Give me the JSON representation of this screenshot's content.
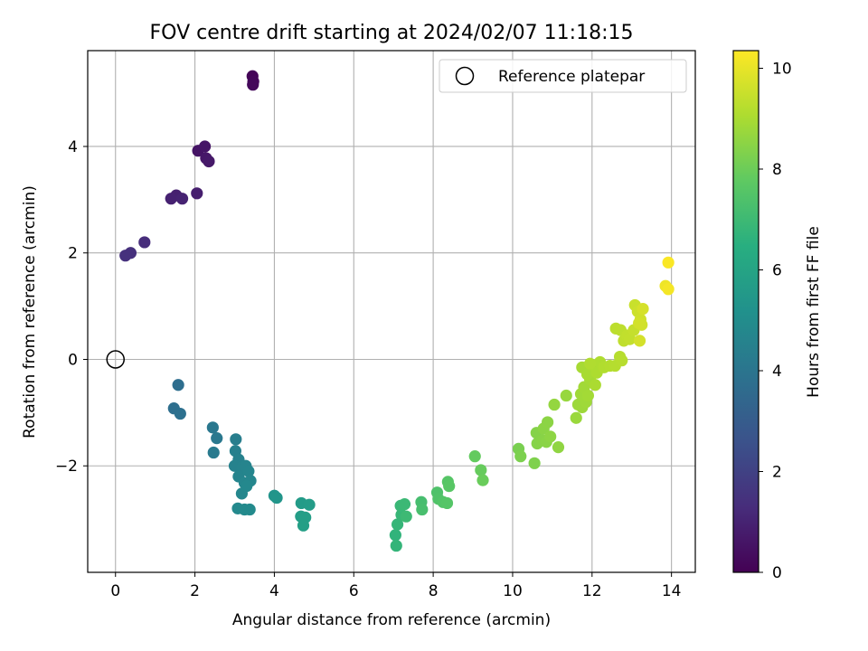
{
  "chart_data": {
    "type": "scatter",
    "title": "FOV centre drift starting at 2024/02/07 11:18:15",
    "xlabel": "Angular distance from reference (arcmin)",
    "ylabel": "Rotation from reference (arcmin)",
    "xlim": [
      -0.7,
      14.6
    ],
    "ylim": [
      -4.0,
      5.8
    ],
    "xticks": [
      0,
      2,
      4,
      6,
      8,
      10,
      12,
      14
    ],
    "yticks": [
      -2,
      0,
      2,
      4
    ],
    "xtick_labels": [
      "0",
      "2",
      "4",
      "6",
      "8",
      "10",
      "12",
      "14"
    ],
    "ytick_labels": [
      "−2",
      "0",
      "2",
      "4"
    ],
    "grid": true,
    "legend": {
      "label": "Reference platepar",
      "placement": "upper-right"
    },
    "reference_point": {
      "x": 0,
      "y": 0
    },
    "colorbar": {
      "label": "Hours from first FF file",
      "range": [
        0,
        10.35
      ],
      "ticks": [
        0,
        2,
        4,
        6,
        8,
        10
      ],
      "tick_labels": [
        "0",
        "2",
        "4",
        "6",
        "8",
        "10"
      ],
      "colormap": "viridis"
    },
    "points_columns": [
      "x_arcmin",
      "y_arcmin",
      "hours"
    ],
    "points": [
      [
        3.45,
        5.32,
        0.1
      ],
      [
        3.47,
        5.22,
        0.15
      ],
      [
        3.46,
        5.16,
        0.2
      ],
      [
        2.08,
        3.92,
        0.55
      ],
      [
        2.25,
        4.0,
        0.6
      ],
      [
        2.28,
        3.78,
        0.65
      ],
      [
        2.35,
        3.72,
        0.7
      ],
      [
        2.05,
        3.12,
        0.85
      ],
      [
        1.53,
        3.08,
        0.9
      ],
      [
        1.4,
        3.02,
        0.95
      ],
      [
        1.68,
        3.02,
        1.0
      ],
      [
        0.73,
        2.2,
        1.3
      ],
      [
        0.38,
        2.0,
        1.4
      ],
      [
        0.25,
        1.95,
        1.45
      ],
      [
        1.58,
        -0.48,
        3.7
      ],
      [
        1.47,
        -0.92,
        3.75
      ],
      [
        1.63,
        -1.02,
        3.8
      ],
      [
        2.45,
        -1.28,
        4.1
      ],
      [
        2.55,
        -1.48,
        4.15
      ],
      [
        2.47,
        -1.75,
        4.2
      ],
      [
        3.03,
        -1.5,
        4.4
      ],
      [
        3.02,
        -1.72,
        4.45
      ],
      [
        3.1,
        -1.88,
        4.5
      ],
      [
        3.0,
        -2.0,
        4.55
      ],
      [
        3.2,
        -2.02,
        4.6
      ],
      [
        3.28,
        -2.0,
        4.62
      ],
      [
        3.1,
        -2.2,
        4.65
      ],
      [
        3.35,
        -2.1,
        4.68
      ],
      [
        3.25,
        -2.32,
        4.7
      ],
      [
        3.4,
        -2.28,
        4.72
      ],
      [
        3.18,
        -2.52,
        4.75
      ],
      [
        3.3,
        -2.38,
        4.78
      ],
      [
        3.08,
        -2.8,
        4.85
      ],
      [
        3.25,
        -2.82,
        4.88
      ],
      [
        3.38,
        -2.82,
        4.9
      ],
      [
        4.0,
        -2.56,
        5.3
      ],
      [
        4.06,
        -2.6,
        5.35
      ],
      [
        4.68,
        -2.7,
        5.6
      ],
      [
        4.88,
        -2.73,
        5.65
      ],
      [
        4.67,
        -2.95,
        5.7
      ],
      [
        4.78,
        -2.97,
        5.75
      ],
      [
        4.73,
        -3.12,
        5.8
      ],
      [
        7.05,
        -3.3,
        6.7
      ],
      [
        7.07,
        -3.5,
        6.75
      ],
      [
        7.1,
        -3.1,
        6.8
      ],
      [
        7.2,
        -2.92,
        6.85
      ],
      [
        7.18,
        -2.75,
        6.9
      ],
      [
        7.28,
        -2.72,
        6.95
      ],
      [
        7.32,
        -2.95,
        7.0
      ],
      [
        7.7,
        -2.68,
        7.2
      ],
      [
        7.72,
        -2.82,
        7.25
      ],
      [
        8.1,
        -2.5,
        7.4
      ],
      [
        8.13,
        -2.62,
        7.45
      ],
      [
        8.25,
        -2.68,
        7.5
      ],
      [
        8.35,
        -2.7,
        7.55
      ],
      [
        8.37,
        -2.3,
        7.58
      ],
      [
        8.4,
        -2.38,
        7.62
      ],
      [
        9.05,
        -1.82,
        7.85
      ],
      [
        9.2,
        -2.08,
        7.9
      ],
      [
        9.25,
        -2.27,
        7.95
      ],
      [
        10.15,
        -1.68,
        8.2
      ],
      [
        10.2,
        -1.82,
        8.25
      ],
      [
        10.55,
        -1.95,
        8.3
      ],
      [
        10.6,
        -1.38,
        8.4
      ],
      [
        10.62,
        -1.58,
        8.42
      ],
      [
        10.75,
        -1.52,
        8.45
      ],
      [
        10.85,
        -1.55,
        8.48
      ],
      [
        10.78,
        -1.3,
        8.5
      ],
      [
        10.88,
        -1.18,
        8.52
      ],
      [
        10.95,
        -1.45,
        8.55
      ],
      [
        11.15,
        -1.65,
        8.58
      ],
      [
        11.05,
        -0.85,
        8.65
      ],
      [
        11.35,
        -0.68,
        8.7
      ],
      [
        11.6,
        -1.1,
        8.75
      ],
      [
        11.65,
        -0.85,
        8.78
      ],
      [
        11.75,
        -0.9,
        8.8
      ],
      [
        11.85,
        -0.8,
        8.82
      ],
      [
        11.72,
        -0.65,
        8.85
      ],
      [
        11.8,
        -0.52,
        8.88
      ],
      [
        11.9,
        -0.68,
        8.9
      ],
      [
        11.95,
        -0.38,
        8.92
      ],
      [
        11.75,
        -0.15,
        8.95
      ],
      [
        11.88,
        -0.28,
        8.98
      ],
      [
        12.0,
        -0.12,
        9.0
      ],
      [
        12.08,
        -0.48,
        9.02
      ],
      [
        12.12,
        -0.25,
        9.05
      ],
      [
        12.2,
        -0.05,
        9.08
      ],
      [
        11.95,
        -0.08,
        9.1
      ],
      [
        12.3,
        -0.15,
        9.12
      ],
      [
        12.45,
        -0.12,
        9.15
      ],
      [
        12.58,
        -0.12,
        9.18
      ],
      [
        12.7,
        0.05,
        9.2
      ],
      [
        12.75,
        -0.02,
        9.22
      ],
      [
        12.6,
        0.58,
        9.3
      ],
      [
        12.72,
        0.55,
        9.32
      ],
      [
        12.8,
        0.35,
        9.35
      ],
      [
        12.88,
        0.45,
        9.38
      ],
      [
        12.95,
        0.38,
        9.4
      ],
      [
        13.05,
        0.55,
        9.45
      ],
      [
        13.08,
        1.02,
        9.5
      ],
      [
        13.15,
        0.9,
        9.55
      ],
      [
        13.22,
        0.75,
        9.6
      ],
      [
        13.25,
        0.65,
        9.62
      ],
      [
        13.18,
        0.68,
        9.65
      ],
      [
        13.2,
        0.35,
        9.68
      ],
      [
        13.28,
        0.95,
        9.7
      ],
      [
        13.85,
        1.38,
        10.1
      ],
      [
        13.92,
        1.32,
        10.2
      ],
      [
        13.92,
        1.82,
        10.3
      ]
    ]
  }
}
